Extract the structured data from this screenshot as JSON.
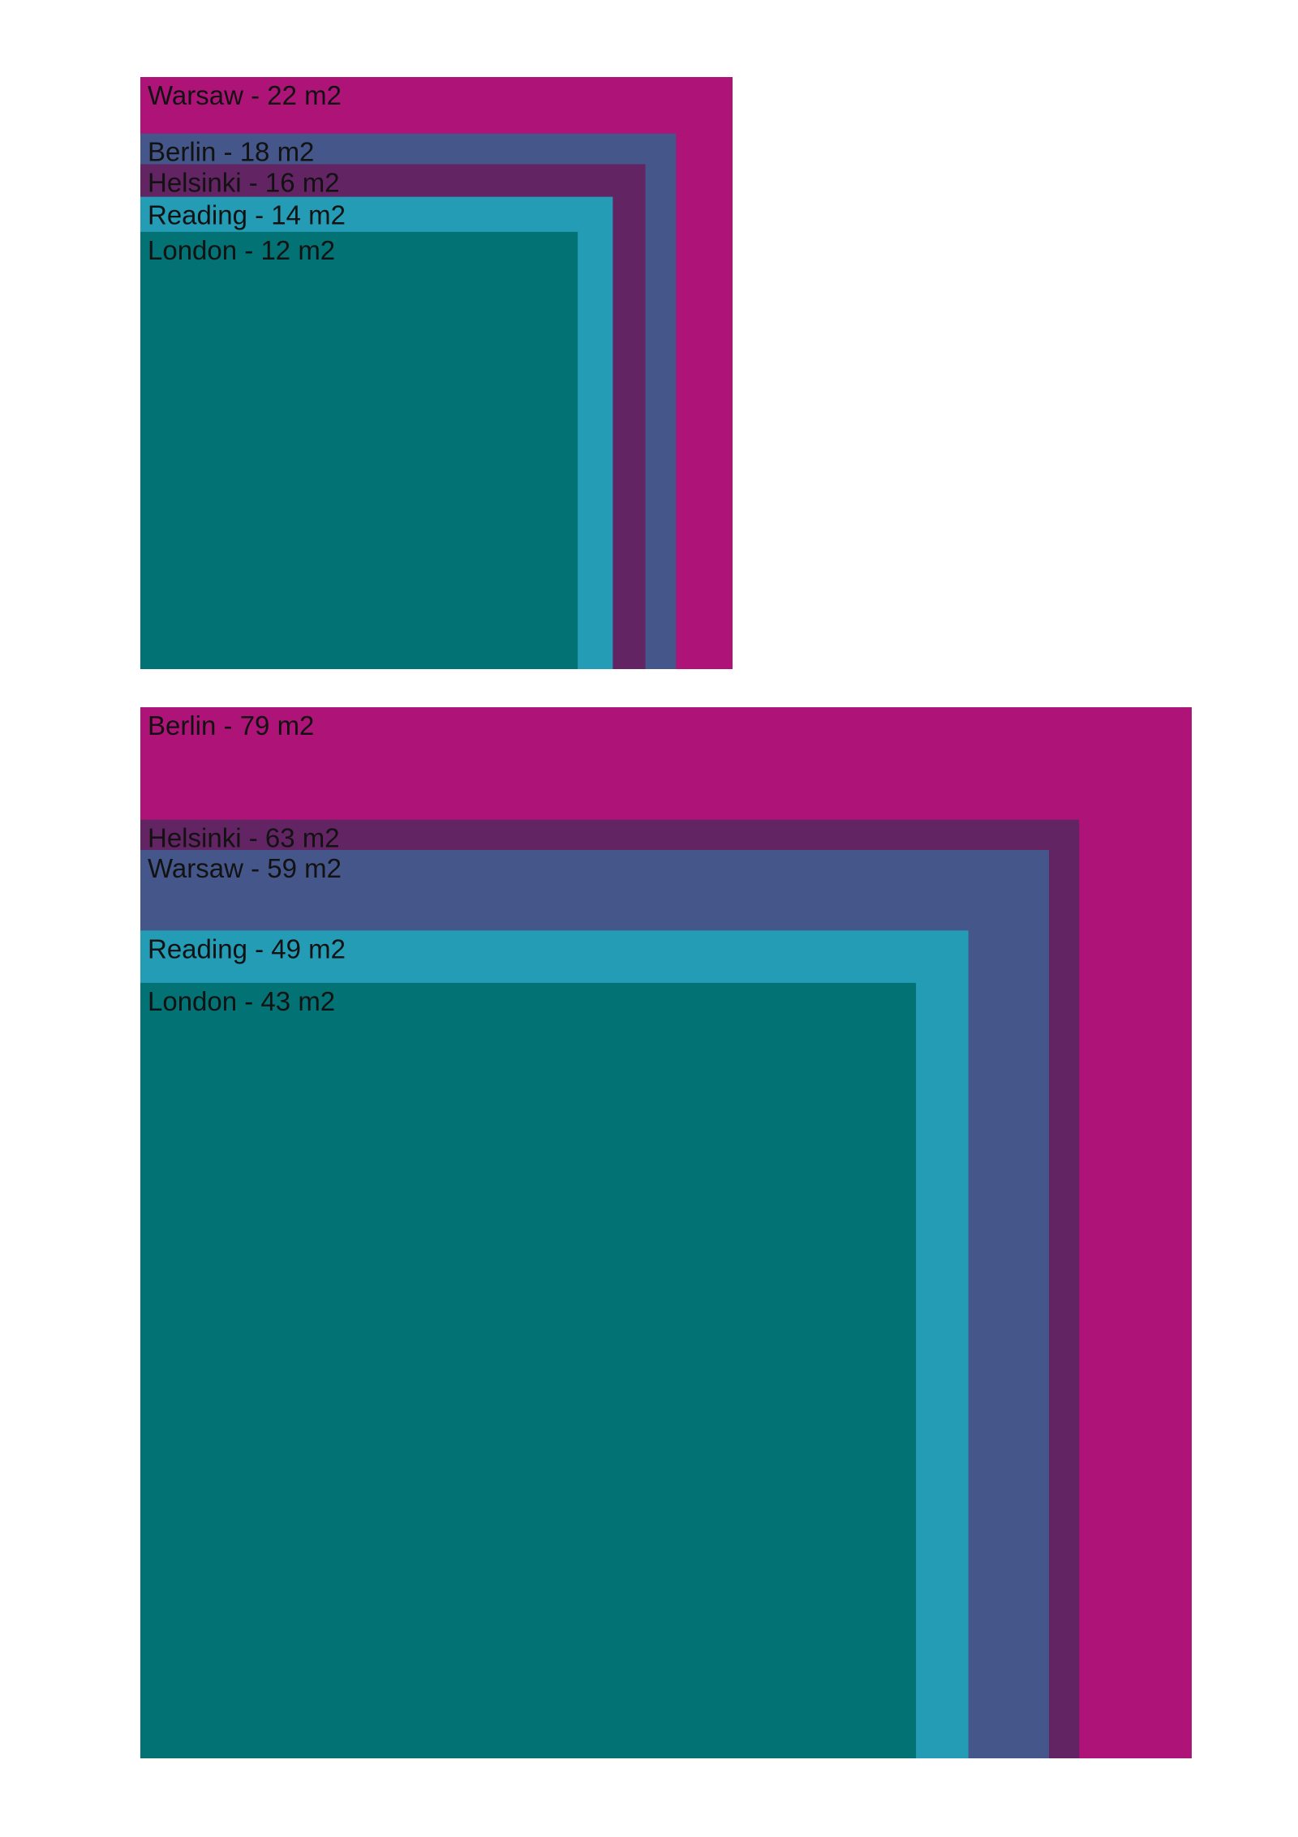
{
  "chart_data": [
    {
      "type": "nested-squares",
      "unit": "m2",
      "items": [
        {
          "city": "Warsaw",
          "value": 22,
          "label": "Warsaw - 22 m2",
          "color": "#AE1478"
        },
        {
          "city": "Berlin",
          "value": 18,
          "label": "Berlin - 18 m2",
          "color": "#45568A"
        },
        {
          "city": "Helsinki",
          "value": 16,
          "label": "Helsinki - 16 m2",
          "color": "#632464"
        },
        {
          "city": "Reading",
          "value": 14,
          "label": "Reading - 14 m2",
          "color": "#249CB6"
        },
        {
          "city": "London",
          "value": 12,
          "label": "London - 12 m2",
          "color": "#037275"
        }
      ]
    },
    {
      "type": "nested-squares",
      "unit": "m2",
      "items": [
        {
          "city": "Berlin",
          "value": 79,
          "label": "Berlin - 79 m2",
          "color": "#AE1478"
        },
        {
          "city": "Helsinki",
          "value": 63,
          "label": "Helsinki - 63 m2",
          "color": "#632464"
        },
        {
          "city": "Warsaw",
          "value": 59,
          "label": "Warsaw - 59 m2",
          "color": "#45568A"
        },
        {
          "city": "Reading",
          "value": 49,
          "label": "Reading - 49 m2",
          "color": "#249CB6"
        },
        {
          "city": "London",
          "value": 43,
          "label": "London - 43 m2",
          "color": "#037275"
        }
      ]
    }
  ]
}
